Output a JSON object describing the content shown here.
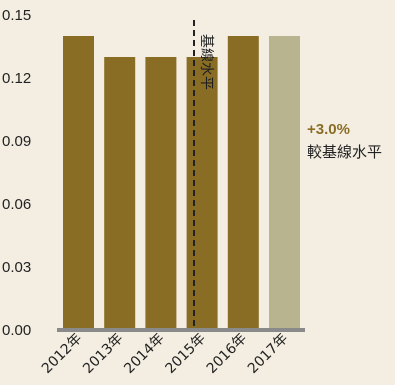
{
  "chart_data": {
    "type": "bar",
    "categories": [
      "2012年",
      "2013年",
      "2014年",
      "2015年",
      "2016年",
      "2017年"
    ],
    "values": [
      0.14,
      0.13,
      0.13,
      0.13,
      0.14,
      0.14
    ],
    "yticks": [
      "0.00",
      "0.03",
      "0.06",
      "0.09",
      "0.12",
      "0.15"
    ],
    "ylim": [
      0,
      0.15
    ],
    "baseline": {
      "category": "2015年",
      "label": "基線水平"
    },
    "annotation": {
      "value": "+3.0%",
      "text": "較基線水平"
    },
    "colors": {
      "background": "#f4eee2",
      "bar": "#8a6d25",
      "bar_highlight": "#b7b48f",
      "axis": "#8a8a8a",
      "annotation": "#8a6d25",
      "text": "#222222"
    },
    "highlight_category": "2017年"
  }
}
